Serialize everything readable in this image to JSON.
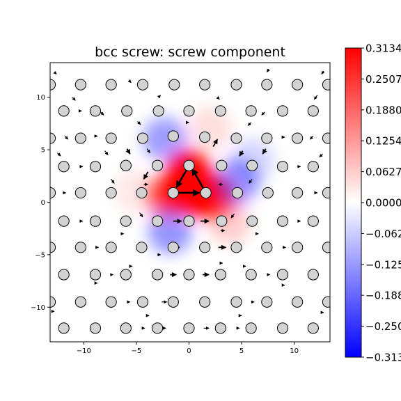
{
  "chart_data": {
    "type": "heatmap",
    "title": "bcc screw: screw component",
    "xlabel": "",
    "ylabel": "",
    "xlim": [
      -13.2,
      13.4
    ],
    "ylim": [
      -13.3,
      13.3
    ],
    "x_ticks": [
      -10,
      -5,
      0,
      5,
      10
    ],
    "x_tick_labels": [
      "−10",
      "−5",
      "0",
      "5",
      "10"
    ],
    "y_ticks": [
      -10,
      -5,
      0,
      5,
      10
    ],
    "y_tick_labels": [
      "−10",
      "−5",
      "0",
      "5",
      "10"
    ],
    "colormap": "bwr",
    "colors": {
      "positive": "#ff0000",
      "zero": "#ffffff",
      "negative": "#0000ff",
      "atom_fill": "#d3d3d3",
      "atom_edge": "#000000",
      "arrow": "#000000"
    },
    "colorbar": {
      "range": [
        -0.3134,
        0.3134
      ],
      "ticks": [
        0.3134,
        0.2507,
        0.188,
        0.1254,
        0.0627,
        0.0,
        -0.0627,
        -0.1254,
        -0.188,
        -0.2507,
        -0.3134
      ],
      "tick_labels": [
        "0.3134",
        "0.2507",
        "0.1880",
        "0.1254",
        "0.0627",
        "0.0000",
        "−0.0627",
        "−0.1254",
        "−0.1880",
        "−0.2507",
        "−0.3134"
      ]
    },
    "field": {
      "description_values": "core",
      "lobes": [
        {
          "x": 0.8,
          "y": 0.9,
          "value": 0.3134
        },
        {
          "x": 0.0,
          "y": 2.6,
          "value": 0.25
        },
        {
          "x": 2.4,
          "y": 0.5,
          "value": 0.2
        },
        {
          "x": -2.0,
          "y": 0.6,
          "value": 0.18
        },
        {
          "x": 3.8,
          "y": -1.9,
          "value": 0.06
        },
        {
          "x": -5.0,
          "y": 1.0,
          "value": 0.03
        },
        {
          "x": 2.0,
          "y": 7.0,
          "value": 0.04
        },
        {
          "x": -2.3,
          "y": 6.0,
          "value": -0.12
        },
        {
          "x": 4.6,
          "y": 2.0,
          "value": -0.13
        },
        {
          "x": -1.8,
          "y": -2.8,
          "value": -0.13
        },
        {
          "x": 6.0,
          "y": 4.0,
          "value": -0.05
        }
      ]
    },
    "atoms": [
      {
        "x": -13.2,
        "y": 11.2
      },
      {
        "x": -10.3,
        "y": 11.2
      },
      {
        "x": -7.4,
        "y": 11.2
      },
      {
        "x": -4.4,
        "y": 11.2
      },
      {
        "x": -1.4,
        "y": 11.2
      },
      {
        "x": 1.5,
        "y": 11.2
      },
      {
        "x": 4.5,
        "y": 11.2
      },
      {
        "x": 7.4,
        "y": 11.2
      },
      {
        "x": 10.3,
        "y": 11.2
      },
      {
        "x": 13.2,
        "y": 11.2
      },
      {
        "x": -11.9,
        "y": 8.7
      },
      {
        "x": -8.9,
        "y": 8.7
      },
      {
        "x": -5.9,
        "y": 8.7
      },
      {
        "x": -2.9,
        "y": 8.7
      },
      {
        "x": 0.0,
        "y": 8.7
      },
      {
        "x": 3.0,
        "y": 8.7
      },
      {
        "x": 5.9,
        "y": 8.7
      },
      {
        "x": 8.9,
        "y": 8.7
      },
      {
        "x": 11.8,
        "y": 8.7
      },
      {
        "x": -13.2,
        "y": 6.1
      },
      {
        "x": -10.3,
        "y": 6.1
      },
      {
        "x": -7.4,
        "y": 6.1
      },
      {
        "x": -4.4,
        "y": 6.1
      },
      {
        "x": -1.5,
        "y": 6.3
      },
      {
        "x": 1.5,
        "y": 6.2
      },
      {
        "x": 4.5,
        "y": 6.1
      },
      {
        "x": 7.4,
        "y": 6.1
      },
      {
        "x": 10.3,
        "y": 6.1
      },
      {
        "x": 13.2,
        "y": 6.1
      },
      {
        "x": -11.9,
        "y": 3.4
      },
      {
        "x": -8.9,
        "y": 3.4
      },
      {
        "x": -6.0,
        "y": 3.5
      },
      {
        "x": -3.0,
        "y": 3.5
      },
      {
        "x": 0.0,
        "y": 3.5
      },
      {
        "x": 3.1,
        "y": 3.5
      },
      {
        "x": 6.0,
        "y": 3.5
      },
      {
        "x": 8.9,
        "y": 3.4
      },
      {
        "x": 11.8,
        "y": 3.4
      },
      {
        "x": -13.2,
        "y": 0.9
      },
      {
        "x": -10.3,
        "y": 0.9
      },
      {
        "x": -7.4,
        "y": 0.9
      },
      {
        "x": -4.5,
        "y": 0.9
      },
      {
        "x": -1.5,
        "y": 0.9
      },
      {
        "x": 1.6,
        "y": 0.9
      },
      {
        "x": 4.6,
        "y": 0.9
      },
      {
        "x": 7.5,
        "y": 0.9
      },
      {
        "x": 10.3,
        "y": 0.9
      },
      {
        "x": 13.2,
        "y": 0.9
      },
      {
        "x": -11.9,
        "y": -1.8
      },
      {
        "x": -8.9,
        "y": -1.8
      },
      {
        "x": -6.0,
        "y": -1.8
      },
      {
        "x": -3.0,
        "y": -1.8
      },
      {
        "x": 0.0,
        "y": -1.8
      },
      {
        "x": 3.1,
        "y": -1.8
      },
      {
        "x": 6.0,
        "y": -1.8
      },
      {
        "x": 8.9,
        "y": -1.8
      },
      {
        "x": 11.8,
        "y": -1.8
      },
      {
        "x": -13.2,
        "y": -4.3
      },
      {
        "x": -10.3,
        "y": -4.3
      },
      {
        "x": -7.4,
        "y": -4.3
      },
      {
        "x": -4.5,
        "y": -4.3
      },
      {
        "x": -1.5,
        "y": -4.3
      },
      {
        "x": 1.5,
        "y": -4.3
      },
      {
        "x": 4.5,
        "y": -4.3
      },
      {
        "x": 7.4,
        "y": -4.3
      },
      {
        "x": 10.3,
        "y": -4.3
      },
      {
        "x": 13.2,
        "y": -4.3
      },
      {
        "x": -11.9,
        "y": -6.9
      },
      {
        "x": -8.9,
        "y": -6.9
      },
      {
        "x": -6.0,
        "y": -6.9
      },
      {
        "x": -3.0,
        "y": -6.9
      },
      {
        "x": 0.0,
        "y": -6.9
      },
      {
        "x": 3.0,
        "y": -6.9
      },
      {
        "x": 5.9,
        "y": -6.9
      },
      {
        "x": 8.9,
        "y": -6.9
      },
      {
        "x": 11.8,
        "y": -6.9
      },
      {
        "x": -13.2,
        "y": -9.5
      },
      {
        "x": -10.3,
        "y": -9.5
      },
      {
        "x": -7.4,
        "y": -9.5
      },
      {
        "x": -4.4,
        "y": -9.5
      },
      {
        "x": -1.5,
        "y": -9.5
      },
      {
        "x": 1.5,
        "y": -9.5
      },
      {
        "x": 4.5,
        "y": -9.5
      },
      {
        "x": 7.4,
        "y": -9.5
      },
      {
        "x": 10.3,
        "y": -9.5
      },
      {
        "x": 13.2,
        "y": -9.5
      },
      {
        "x": -11.9,
        "y": -12.0
      },
      {
        "x": -8.9,
        "y": -12.0
      },
      {
        "x": -6.0,
        "y": -12.0
      },
      {
        "x": -3.0,
        "y": -12.0
      },
      {
        "x": 0.0,
        "y": -12.0
      },
      {
        "x": 3.0,
        "y": -12.0
      },
      {
        "x": 5.9,
        "y": -12.0
      },
      {
        "x": 8.9,
        "y": -12.0
      },
      {
        "x": 11.8,
        "y": -12.0
      }
    ],
    "arrows": [
      {
        "x": -1.5,
        "y": 0.9,
        "dx": 2.5,
        "dy": 0.0
      },
      {
        "x": 1.6,
        "y": 0.9,
        "dx": -1.3,
        "dy": 2.3
      },
      {
        "x": 0.0,
        "y": 3.5,
        "dx": -1.2,
        "dy": -2.1
      },
      {
        "x": -3.9,
        "y": 2.9,
        "dx": -0.4,
        "dy": -0.7
      },
      {
        "x": 2.3,
        "y": 5.3,
        "dx": 0.4,
        "dy": 0.7
      },
      {
        "x": -1.5,
        "y": -1.8,
        "dx": 0.8,
        "dy": 0.0
      },
      {
        "x": 1.1,
        "y": -1.8,
        "dx": 0.8,
        "dy": 0.0
      },
      {
        "x": -1.6,
        "y": -4.3,
        "dx": 0.7,
        "dy": 0.0
      },
      {
        "x": 2.8,
        "y": -4.3,
        "dx": 0.7,
        "dy": 0.0
      },
      {
        "x": -1.8,
        "y": -6.9,
        "dx": 0.6,
        "dy": 0.0
      },
      {
        "x": 1.3,
        "y": -6.9,
        "dx": 0.6,
        "dy": 0.0
      },
      {
        "x": 1.4,
        "y": -9.5,
        "dx": 0.6,
        "dy": 0.0
      },
      {
        "x": -2.6,
        "y": -9.5,
        "dx": 0.5,
        "dy": 0.0
      },
      {
        "x": 1.4,
        "y": -12.0,
        "dx": 0.5,
        "dy": 0.0
      },
      {
        "x": -2.6,
        "y": -12.0,
        "dx": 0.4,
        "dy": 0.0
      },
      {
        "x": -4.0,
        "y": 5.1,
        "dx": 0.3,
        "dy": -0.4
      },
      {
        "x": 5.1,
        "y": 4.9,
        "dx": -0.3,
        "dy": -0.5
      },
      {
        "x": -7.4,
        "y": 2.2,
        "dx": 0.3,
        "dy": -0.4
      },
      {
        "x": 6.0,
        "y": 2.2,
        "dx": -0.3,
        "dy": -0.4
      },
      {
        "x": -5.9,
        "y": 5.1,
        "dx": 0.3,
        "dy": -0.5
      },
      {
        "x": 7.3,
        "y": 5.1,
        "dx": -0.3,
        "dy": -0.5
      },
      {
        "x": -8.0,
        "y": 4.9,
        "dx": 0.3,
        "dy": -0.4
      },
      {
        "x": -4.9,
        "y": 7.7,
        "dx": 0.3,
        "dy": -0.3
      },
      {
        "x": 5.9,
        "y": 7.6,
        "dx": -0.3,
        "dy": -0.3
      },
      {
        "x": -0.3,
        "y": 7.6,
        "dx": 0.3,
        "dy": 0.0
      },
      {
        "x": 2.7,
        "y": 10.0,
        "dx": 0.2,
        "dy": -0.2
      },
      {
        "x": -2.9,
        "y": 10.0,
        "dx": 0.2,
        "dy": 0.2
      },
      {
        "x": -4.3,
        "y": 1.7,
        "dx": 0.4,
        "dy": 0.0
      },
      {
        "x": 3.2,
        "y": 1.7,
        "dx": -0.4,
        "dy": 0.0
      },
      {
        "x": 3.0,
        "y": -2.7,
        "dx": 0.4,
        "dy": 0.0
      },
      {
        "x": -4.7,
        "y": -1.0,
        "dx": 0.3,
        "dy": -0.4
      },
      {
        "x": 4.3,
        "y": -1.1,
        "dx": -0.3,
        "dy": -0.4
      },
      {
        "x": -8.4,
        "y": 8.6,
        "dx": 0.3,
        "dy": -0.3
      },
      {
        "x": 7.2,
        "y": 8.6,
        "dx": -0.3,
        "dy": -0.3
      },
      {
        "x": -11.8,
        "y": 6.3,
        "dx": 0.3,
        "dy": -0.3
      },
      {
        "x": 11.8,
        "y": 6.3,
        "dx": -0.3,
        "dy": -0.3
      },
      {
        "x": -12.5,
        "y": 4.7,
        "dx": 0.3,
        "dy": -0.3
      },
      {
        "x": 12.7,
        "y": 4.6,
        "dx": -0.3,
        "dy": -0.3
      },
      {
        "x": -11.1,
        "y": 10.0,
        "dx": 0.3,
        "dy": -0.3
      },
      {
        "x": 12.2,
        "y": 10.2,
        "dx": -0.3,
        "dy": -0.4
      },
      {
        "x": -5.7,
        "y": 11.6,
        "dx": 0.2,
        "dy": -0.2
      },
      {
        "x": 7.6,
        "y": 12.7,
        "dx": -0.2,
        "dy": -0.3
      },
      {
        "x": -12.8,
        "y": 12.4,
        "dx": 0.2,
        "dy": -0.2
      },
      {
        "x": 12.8,
        "y": 12.5,
        "dx": -0.2,
        "dy": -0.3
      },
      {
        "x": -7.5,
        "y": 11.0,
        "dx": 0.3,
        "dy": 0.0
      },
      {
        "x": 4.3,
        "y": 11.1,
        "dx": 0.3,
        "dy": 0.0
      },
      {
        "x": -10.5,
        "y": 8.7,
        "dx": 0.3,
        "dy": 0.0
      },
      {
        "x": 8.7,
        "y": 8.7,
        "dx": 0.3,
        "dy": 0.0
      },
      {
        "x": -9.0,
        "y": 6.3,
        "dx": 0.3,
        "dy": 0.0
      },
      {
        "x": 8.8,
        "y": 6.2,
        "dx": 0.3,
        "dy": 0.0
      },
      {
        "x": -10.4,
        "y": 3.4,
        "dx": 0.3,
        "dy": 0.0
      },
      {
        "x": 10.3,
        "y": 3.4,
        "dx": 0.3,
        "dy": 0.0
      },
      {
        "x": -12.0,
        "y": 0.9,
        "dx": 0.3,
        "dy": 0.0
      },
      {
        "x": 11.9,
        "y": 0.9,
        "dx": 0.3,
        "dy": 0.0
      },
      {
        "x": -10.4,
        "y": -1.8,
        "dx": 0.3,
        "dy": 0.0
      },
      {
        "x": 10.3,
        "y": -1.8,
        "dx": 0.3,
        "dy": 0.0
      },
      {
        "x": -8.9,
        "y": -4.3,
        "dx": 0.3,
        "dy": 0.0
      },
      {
        "x": 8.9,
        "y": -4.3,
        "dx": 0.3,
        "dy": 0.0
      },
      {
        "x": -7.5,
        "y": -6.9,
        "dx": 0.3,
        "dy": 0.0
      },
      {
        "x": 7.4,
        "y": -6.9,
        "dx": 0.3,
        "dy": 0.0
      },
      {
        "x": -5.9,
        "y": -9.5,
        "dx": 0.3,
        "dy": 0.0
      },
      {
        "x": 5.9,
        "y": -9.5,
        "dx": 0.3,
        "dy": 0.0
      },
      {
        "x": -4.5,
        "y": -12.0,
        "dx": 0.3,
        "dy": 0.0
      },
      {
        "x": 4.5,
        "y": -12.0,
        "dx": 0.3,
        "dy": 0.0
      },
      {
        "x": -8.9,
        "y": -7.7,
        "dx": 0.2,
        "dy": 0.0
      },
      {
        "x": 8.9,
        "y": -7.9,
        "dx": 0.2,
        "dy": 0.0
      },
      {
        "x": -3.0,
        "y": -5.0,
        "dx": 0.3,
        "dy": 0.0
      },
      {
        "x": 2.9,
        "y": -5.8,
        "dx": 0.3,
        "dy": 0.0
      },
      {
        "x": -6.5,
        "y": -3.0,
        "dx": 0.3,
        "dy": 0.0
      },
      {
        "x": 6.3,
        "y": -3.0,
        "dx": 0.3,
        "dy": 0.0
      },
      {
        "x": 5.2,
        "y": -6.1,
        "dx": 0.2,
        "dy": 0.0
      },
      {
        "x": -5.6,
        "y": -6.1,
        "dx": 0.2,
        "dy": 0.0
      },
      {
        "x": 4.8,
        "y": -10.8,
        "dx": 0.2,
        "dy": 0.0
      },
      {
        "x": -4.0,
        "y": -10.8,
        "dx": 0.2,
        "dy": 0.0
      },
      {
        "x": -13.0,
        "y": -10.4,
        "dx": 0.2,
        "dy": 0.0
      },
      {
        "x": 12.6,
        "y": -10.5,
        "dx": 0.2,
        "dy": 0.0
      }
    ]
  }
}
